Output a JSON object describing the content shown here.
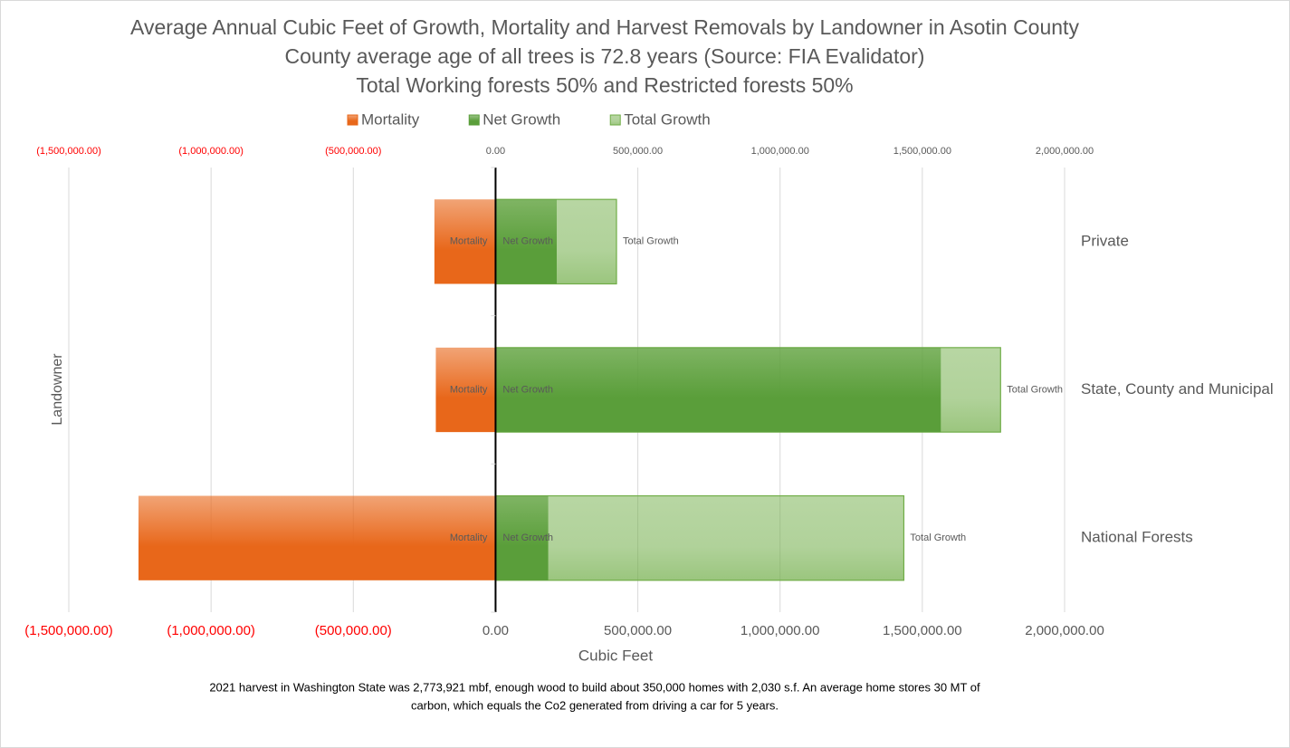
{
  "chart_data": {
    "type": "bar",
    "orientation": "horizontal",
    "title": "Average Annual Cubic Feet of Growth, Mortality and Harvest Removals by Landowner in Asotin County",
    "subtitle": [
      "County average age of all trees is 72.8 years (Source: FIA Evalidator)",
      "Total Working forests 50% and Restricted forests 50%"
    ],
    "categories": [
      "Private",
      "State, County and Municipal",
      "National Forests"
    ],
    "series": [
      {
        "name": "Total Growth",
        "color": "#70ad47",
        "values": [
          425000,
          1775000,
          1435000
        ]
      },
      {
        "name": "Net Growth",
        "color": "#5a9e3a",
        "values": [
          215000,
          1565000,
          185000
        ]
      },
      {
        "name": "Mortality",
        "color": "#e8671a",
        "values": [
          -215000,
          -210000,
          -1255000
        ]
      }
    ],
    "legend_order": [
      "Mortality",
      "Net Growth",
      "Total Growth"
    ],
    "xlim": [
      -1500000,
      2000000
    ],
    "xticks": [
      {
        "value": -1500000,
        "label": "(1,500,000.00)"
      },
      {
        "value": -1000000,
        "label": "(1,000,000.00)"
      },
      {
        "value": -500000,
        "label": "(500,000.00)"
      },
      {
        "value": 0,
        "label": "0.00"
      },
      {
        "value": 500000,
        "label": "500,000.00"
      },
      {
        "value": 1000000,
        "label": "1,000,000.00"
      },
      {
        "value": 1500000,
        "label": "1,500,000.00"
      },
      {
        "value": 2000000,
        "label": "2,000,000.00"
      }
    ],
    "xlabel": "Cubic  Feet",
    "ylabel": "Landowner",
    "grid": true,
    "legend": "top",
    "footnote": [
      "2021 harvest in Washington State was 2,773,921 mbf, enough wood to build about 350,000 homes with 2,030 s.f. An average home stores 30 MT of",
      "carbon, which equals the Co2 generated from driving a car for 5 years."
    ]
  }
}
